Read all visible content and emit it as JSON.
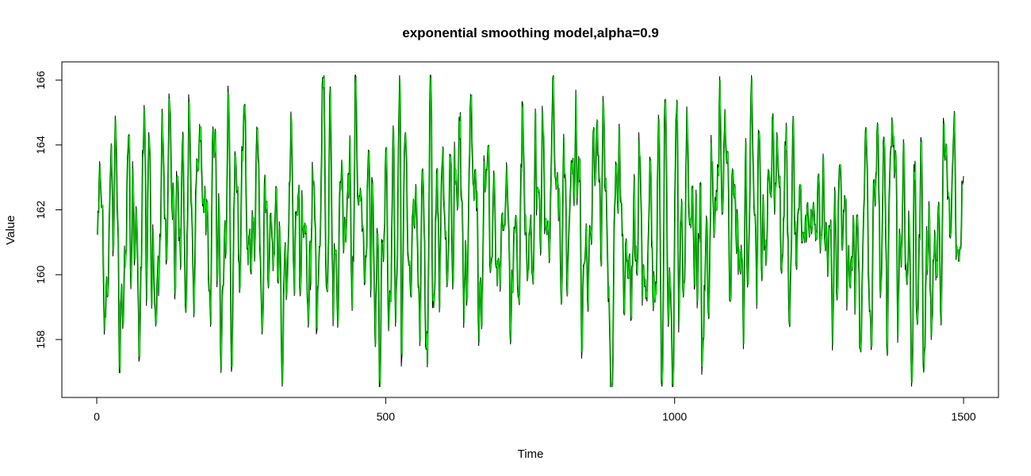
{
  "chart_data": {
    "type": "line",
    "title": "exponential smoothing model,alpha=0.9",
    "xlabel": "Time",
    "ylabel": "Value",
    "xlim": [
      0,
      1500
    ],
    "ylim": [
      156.5,
      166.2
    ],
    "x_ticks": [
      0,
      500,
      1000,
      1500
    ],
    "y_ticks": [
      158,
      160,
      162,
      164,
      166
    ],
    "grid": false,
    "n_points": 1500,
    "mean": 161.5,
    "series": [
      {
        "color": "#000000",
        "style": "observed series"
      },
      {
        "color": "#00ee00",
        "style": "fitted series"
      }
    ]
  },
  "labels": {
    "x_ticks": [
      "0",
      "500",
      "1000",
      "1500"
    ],
    "y_ticks": [
      "158",
      "160",
      "162",
      "164",
      "166"
    ]
  }
}
